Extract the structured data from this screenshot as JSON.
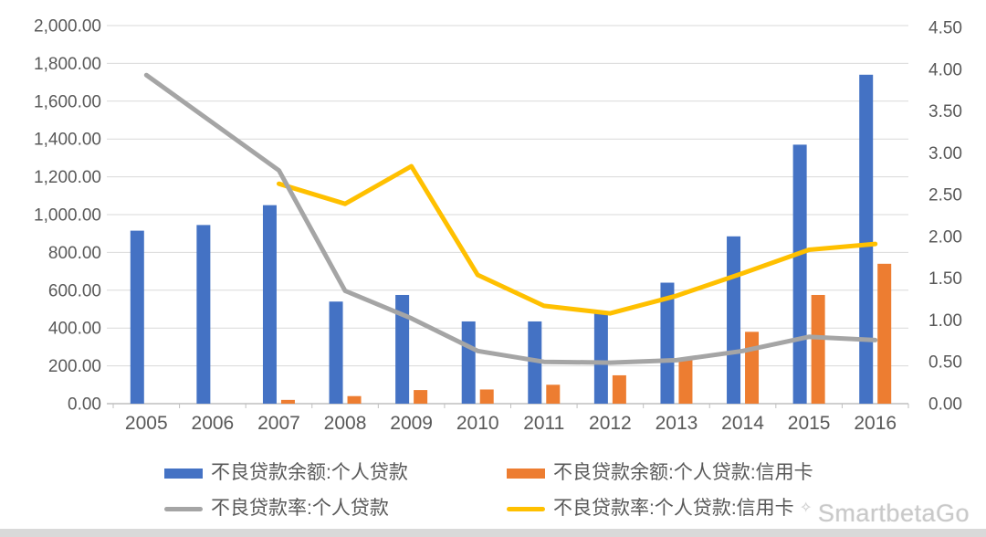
{
  "colors": {
    "blue": "#4472C4",
    "orange": "#ED7D31",
    "gray": "#A5A5A5",
    "yellow": "#FFC000",
    "axis_text": "#595959",
    "gridline": "#D9D9D9",
    "axis_line": "#BFBFBF"
  },
  "watermark": {
    "icon": "sparkle-icon",
    "icon_glyph": "✧",
    "text": "SmartbetaGo"
  },
  "chart_data": {
    "type": "bar",
    "subtype": "combo-bar-line-dual-axis",
    "categories": [
      "2005",
      "2006",
      "2007",
      "2008",
      "2009",
      "2010",
      "2011",
      "2012",
      "2013",
      "2014",
      "2015",
      "2016"
    ],
    "series": [
      {
        "name": "不良贷款余额:个人贷款",
        "type": "bar",
        "axis": "left",
        "color_key": "blue",
        "values": [
          915,
          945,
          1050,
          540,
          575,
          435,
          435,
          480,
          640,
          885,
          1370,
          1740
        ]
      },
      {
        "name": "不良贷款余额:个人贷款:信用卡",
        "type": "bar",
        "axis": "left",
        "color_key": "orange",
        "values": [
          null,
          null,
          20,
          40,
          72,
          75,
          100,
          150,
          235,
          380,
          575,
          740
        ]
      },
      {
        "name": "不良贷款率:个人贷款",
        "type": "line",
        "axis": "right",
        "color_key": "gray",
        "values": [
          3.93,
          3.36,
          2.79,
          1.35,
          1.02,
          0.63,
          0.5,
          0.49,
          0.52,
          0.63,
          0.8,
          0.76
        ]
      },
      {
        "name": "不良贷款率:个人贷款:信用卡",
        "type": "line",
        "axis": "right",
        "color_key": "yellow",
        "values": [
          null,
          null,
          2.63,
          2.39,
          2.84,
          1.54,
          1.17,
          1.08,
          1.29,
          1.56,
          1.84,
          1.91
        ]
      }
    ],
    "left_axis": {
      "min": 0,
      "max": 2000,
      "step": 200,
      "ticks": [
        "0.00",
        "200.00",
        "400.00",
        "600.00",
        "800.00",
        "1,000.00",
        "1,200.00",
        "1,400.00",
        "1,600.00",
        "1,800.00",
        "2,000.00"
      ]
    },
    "right_axis": {
      "min": 0,
      "max": 4.5,
      "step": 0.5,
      "ticks": [
        "0.00",
        "0.50",
        "1.00",
        "1.50",
        "2.00",
        "2.50",
        "3.00",
        "3.50",
        "4.00",
        "4.50"
      ]
    },
    "grid": true,
    "legend_position": "bottom",
    "title": "",
    "xlabel": "",
    "ylabel": ""
  }
}
